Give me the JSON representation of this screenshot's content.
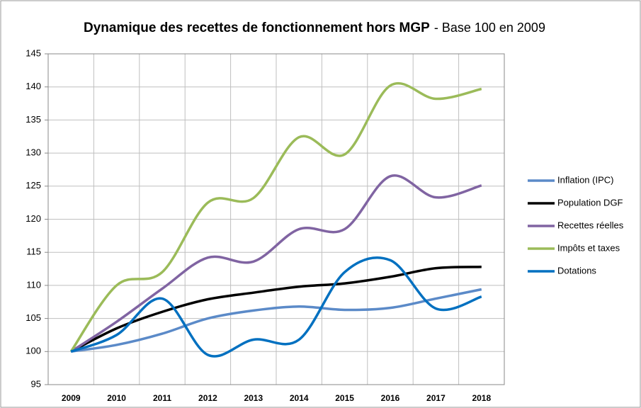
{
  "chart_data": {
    "type": "line",
    "title": "Dynamique des recettes de fonctionnement hors MGP",
    "subtitle": "- Base 100 en 2009",
    "categories": [
      "2009",
      "2010",
      "2011",
      "2012",
      "2013",
      "2014",
      "2015",
      "2016",
      "2017",
      "2018"
    ],
    "series": [
      {
        "name": "Inflation (IPC)",
        "color": "#5b8ac8",
        "values": [
          100,
          101,
          102.7,
          105,
          106.2,
          106.8,
          106.3,
          106.6,
          108,
          109.4
        ]
      },
      {
        "name": "Population DGF",
        "color": "#000000",
        "values": [
          100,
          103.5,
          106,
          107.9,
          108.9,
          109.8,
          110.3,
          111.3,
          112.6,
          112.8
        ]
      },
      {
        "name": "Recettes réelles",
        "color": "#8064a2",
        "values": [
          100,
          104.5,
          109.5,
          114.2,
          113.6,
          118.5,
          118.5,
          126.5,
          123.3,
          125.1
        ]
      },
      {
        "name": "Impôts et taxes",
        "color": "#9bbb59",
        "values": [
          100,
          110,
          112,
          122.5,
          123.2,
          132.4,
          129.8,
          140.2,
          138.2,
          139.7
        ]
      },
      {
        "name": "Dotations",
        "color": "#0070c0",
        "values": [
          100,
          102.5,
          108,
          99.5,
          101.8,
          101.8,
          112,
          113.8,
          106.5,
          108.3
        ]
      }
    ],
    "ylim": [
      95,
      145
    ],
    "yticks": [
      95,
      100,
      105,
      110,
      115,
      120,
      125,
      130,
      135,
      140,
      145
    ],
    "grid": true,
    "legend": "right"
  }
}
